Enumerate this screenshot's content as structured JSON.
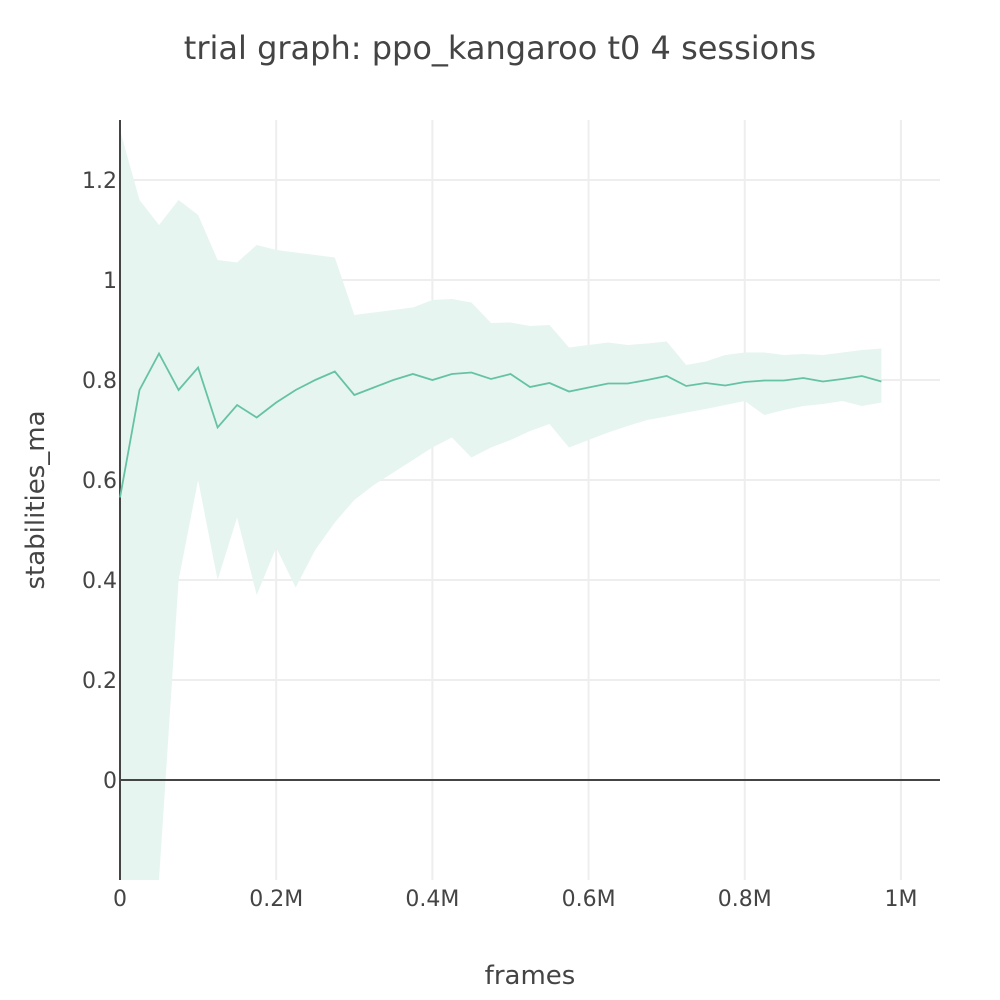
{
  "chart_data": {
    "type": "line",
    "title": "trial graph: ppo_kangaroo t0 4 sessions",
    "xlabel": "frames",
    "ylabel": "stabilities_ma",
    "xlim": [
      0,
      1050000
    ],
    "ylim": [
      -0.2,
      1.32
    ],
    "x_ticks": [
      0,
      200000,
      400000,
      600000,
      800000,
      1000000
    ],
    "x_tick_labels": [
      "0",
      "0.2M",
      "0.4M",
      "0.6M",
      "0.8M",
      "1M"
    ],
    "y_ticks": [
      0,
      0.2,
      0.4,
      0.6,
      0.8,
      1.0,
      1.2
    ],
    "y_tick_labels": [
      "0",
      "0.2",
      "0.4",
      "0.6",
      "0.8",
      "1",
      "1.2"
    ],
    "grid": true,
    "colors": {
      "line": "#66c2a5",
      "band": "#e6f5f0",
      "axis": "#444444",
      "grid": "#eeeeee"
    },
    "series": [
      {
        "x": [
          0,
          25000,
          50000,
          75000,
          100000,
          125000,
          150000,
          175000,
          200000,
          225000,
          250000,
          275000,
          300000,
          325000,
          350000,
          375000,
          400000,
          425000,
          450000,
          475000,
          500000,
          525000,
          550000,
          575000,
          600000,
          625000,
          650000,
          675000,
          700000,
          725000,
          750000,
          775000,
          800000,
          825000,
          850000,
          875000,
          900000,
          925000,
          950000,
          975000
        ],
        "values": [
          0.565,
          0.78,
          0.853,
          0.78,
          0.825,
          0.705,
          0.75,
          0.725,
          0.755,
          0.78,
          0.8,
          0.817,
          0.77,
          0.785,
          0.8,
          0.812,
          0.8,
          0.812,
          0.815,
          0.802,
          0.812,
          0.786,
          0.794,
          0.777,
          0.785,
          0.793,
          0.793,
          0.8,
          0.808,
          0.788,
          0.794,
          0.789,
          0.796,
          0.799,
          0.799,
          0.804,
          0.797,
          0.802,
          0.808,
          0.797
        ],
        "upper": [
          1.3,
          1.16,
          1.11,
          1.16,
          1.13,
          1.04,
          1.035,
          1.07,
          1.06,
          1.055,
          1.05,
          1.045,
          0.93,
          0.935,
          0.94,
          0.945,
          0.96,
          0.962,
          0.955,
          0.914,
          0.915,
          0.908,
          0.91,
          0.865,
          0.87,
          0.875,
          0.87,
          0.873,
          0.877,
          0.83,
          0.837,
          0.85,
          0.855,
          0.855,
          0.85,
          0.852,
          0.85,
          0.855,
          0.86,
          0.863
        ],
        "lower": [
          -0.2,
          -0.2,
          -0.2,
          0.4,
          0.6,
          0.4,
          0.525,
          0.37,
          0.465,
          0.385,
          0.46,
          0.515,
          0.56,
          0.59,
          0.615,
          0.64,
          0.665,
          0.685,
          0.645,
          0.665,
          0.68,
          0.698,
          0.712,
          0.665,
          0.68,
          0.695,
          0.708,
          0.72,
          0.727,
          0.735,
          0.742,
          0.75,
          0.758,
          0.73,
          0.74,
          0.748,
          0.752,
          0.758,
          0.748,
          0.755
        ]
      }
    ]
  }
}
